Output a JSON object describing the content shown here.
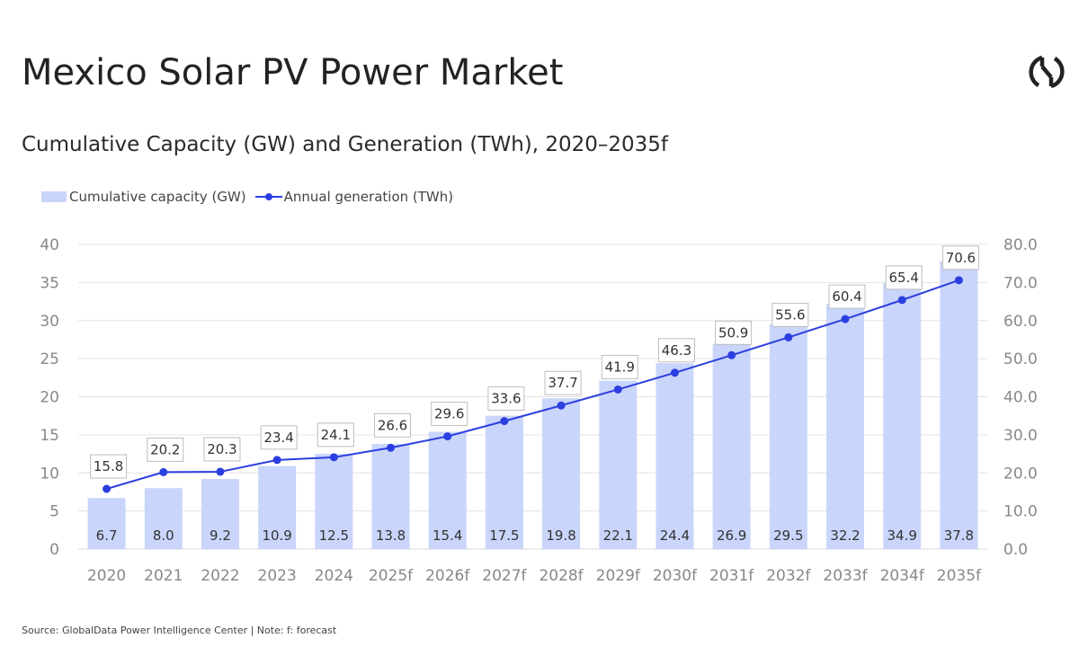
{
  "header": {
    "title": "Mexico Solar PV Power Market",
    "subtitle": "Cumulative Capacity (GW) and Generation (TWh), 2020–2035f",
    "logo_icon": "globaldata-logo-icon"
  },
  "footer": {
    "source": "Source: GlobalData Power Intelligence Center | Note: f: forecast"
  },
  "colors": {
    "bar": "#c9d5fb",
    "line": "#2b3fe0",
    "grid": "#e3e3e3",
    "tick": "#888888"
  },
  "chart_data": {
    "type": "bar",
    "title": "Cumulative Capacity (GW) and Generation (TWh), 2020–2035f",
    "categories": [
      "2020",
      "2021",
      "2022",
      "2023",
      "2024",
      "2025f",
      "2026f",
      "2027f",
      "2028f",
      "2029f",
      "2030f",
      "2031f",
      "2032f",
      "2033f",
      "2034f",
      "2035f"
    ],
    "series": [
      {
        "name": "Cumulative capacity (GW)",
        "type": "bar",
        "axis": "left",
        "values": [
          6.7,
          8.0,
          9.2,
          10.9,
          12.5,
          13.8,
          15.4,
          17.5,
          19.8,
          22.1,
          24.4,
          26.9,
          29.5,
          32.2,
          34.9,
          37.8
        ],
        "labels": [
          "6.7",
          "8.0",
          "9.2",
          "10.9",
          "12.5",
          "13.8",
          "15.4",
          "17.5",
          "19.8",
          "22.1",
          "24.4",
          "26.9",
          "29.5",
          "32.2",
          "34.9",
          "37.8"
        ]
      },
      {
        "name": "Annual generation (TWh)",
        "type": "line",
        "axis": "right",
        "values": [
          15.8,
          20.2,
          20.3,
          23.4,
          24.1,
          26.6,
          29.6,
          33.6,
          37.7,
          41.9,
          46.3,
          50.9,
          55.6,
          60.4,
          65.4,
          70.6
        ],
        "labels": [
          "15.8",
          "20.2",
          "20.3",
          "23.4",
          "24.1",
          "26.6",
          "29.6",
          "33.6",
          "37.7",
          "41.9",
          "46.3",
          "50.9",
          "55.6",
          "60.4",
          "65.4",
          "70.6"
        ]
      }
    ],
    "y_left": {
      "label": "",
      "range": [
        0,
        40
      ],
      "ticks": [
        "0",
        "5",
        "10",
        "15",
        "20",
        "25",
        "30",
        "35",
        "40"
      ],
      "tick_values": [
        0,
        5,
        10,
        15,
        20,
        25,
        30,
        35,
        40
      ]
    },
    "y_right": {
      "label": "",
      "range": [
        0,
        80
      ],
      "ticks": [
        "0.0",
        "10.0",
        "20.0",
        "30.0",
        "40.0",
        "50.0",
        "60.0",
        "70.0",
        "80.0"
      ],
      "tick_values": [
        0,
        10,
        20,
        30,
        40,
        50,
        60,
        70,
        80
      ]
    },
    "xlabel": "",
    "grid": true,
    "legend": {
      "position": "top-left",
      "items": [
        "Cumulative capacity (GW)",
        "Annual generation (TWh)"
      ]
    }
  }
}
